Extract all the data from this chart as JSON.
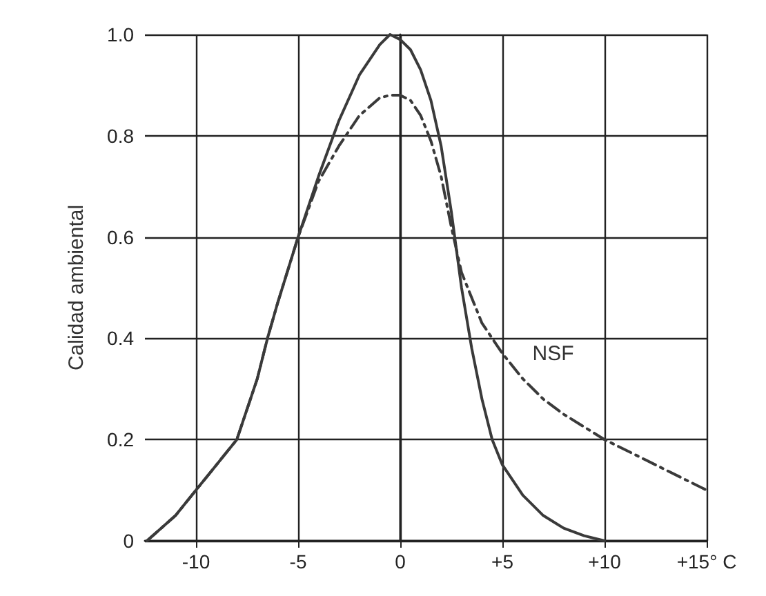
{
  "chart_data": {
    "type": "line",
    "ylabel": "Calidad ambiental",
    "xlim": [
      -12.5,
      15
    ],
    "xticks": [
      {
        "value": -10,
        "label": "-10"
      },
      {
        "value": -5,
        "label": "-5"
      },
      0,
      {
        "value": 5,
        "label": "+5"
      },
      {
        "value": 10,
        "label": "+10"
      },
      {
        "value": 15,
        "label": "+15° C"
      }
    ],
    "ylim": [
      0,
      1.0
    ],
    "yticks": [
      0,
      0.2,
      0.4,
      0.6,
      0.8,
      {
        "value": 1.0,
        "label": "1.0"
      }
    ],
    "grid": true,
    "marker": "none",
    "series": [
      {
        "color": "#3a3a3a",
        "line_style": "solid",
        "x": [
          -12.4,
          -11,
          -10,
          -9,
          -8,
          -7,
          -6.5,
          -6,
          -5,
          -4,
          -3,
          -2,
          -1,
          -0.5,
          0,
          0.5,
          1,
          1.5,
          2,
          2.5,
          3,
          3.5,
          4,
          4.5,
          5,
          6,
          7,
          8,
          9,
          10
        ],
        "values": [
          0,
          0.05,
          0.1,
          0.15,
          0.2,
          0.32,
          0.4,
          0.47,
          0.6,
          0.72,
          0.83,
          0.92,
          0.98,
          1.0,
          0.99,
          0.97,
          0.93,
          0.87,
          0.78,
          0.65,
          0.5,
          0.38,
          0.28,
          0.2,
          0.15,
          0.09,
          0.05,
          0.025,
          0.01,
          0
        ]
      },
      {
        "name": "NSF",
        "color": "#3a3a3a",
        "line_style": "dashed",
        "x": [
          -12.4,
          -11,
          -10,
          -9,
          -8,
          -7,
          -6.5,
          -6,
          -5,
          -4,
          -3,
          -2,
          -1,
          -0.5,
          0,
          0.5,
          1,
          1.5,
          2,
          2.5,
          3,
          3.3,
          4,
          5,
          6,
          7,
          8,
          10,
          12,
          15
        ],
        "values": [
          0,
          0.05,
          0.1,
          0.15,
          0.2,
          0.32,
          0.4,
          0.47,
          0.6,
          0.71,
          0.78,
          0.84,
          0.875,
          0.88,
          0.88,
          0.87,
          0.84,
          0.79,
          0.72,
          0.62,
          0.53,
          0.5,
          0.43,
          0.37,
          0.32,
          0.28,
          0.25,
          0.2,
          0.16,
          0.1
        ]
      }
    ]
  }
}
